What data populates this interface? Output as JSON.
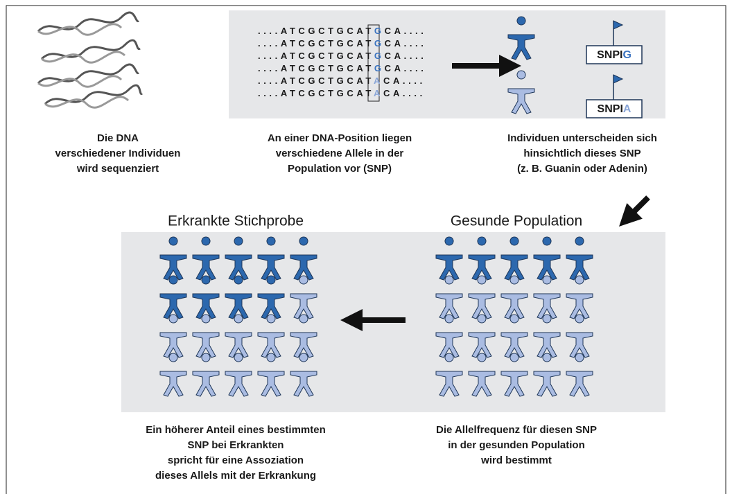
{
  "sequences": [
    {
      "prefix": "....ATCGCTGCAT",
      "allele": "G",
      "suffix": "CA...."
    },
    {
      "prefix": "....ATCGCTGCAT",
      "allele": "G",
      "suffix": "CA...."
    },
    {
      "prefix": "....ATCGCTGCAT",
      "allele": "G",
      "suffix": "CA...."
    },
    {
      "prefix": "....ATCGCTGCAT",
      "allele": "G",
      "suffix": "CA...."
    },
    {
      "prefix": "....ATCGCTGCAT",
      "allele": "A",
      "suffix": "CA...."
    },
    {
      "prefix": "....ATCGCTGCAT",
      "allele": "A",
      "suffix": "CA...."
    }
  ],
  "individuals": [
    {
      "label": "SNPI",
      "allele": "G"
    },
    {
      "label": "SNPI",
      "allele": "A"
    }
  ],
  "captions": {
    "sequencing": [
      "Die DNA",
      "verschiedener Individuen",
      "wird sequenziert"
    ],
    "alleles": [
      "An einer DNA-Position liegen",
      "verschiedene Allele in der",
      "Population vor (SNP)"
    ],
    "individuals": [
      "Individuen unterscheiden sich",
      "hinsichtlich dieses SNP",
      "(z. B. Guanin oder Adenin)"
    ],
    "case_sample": [
      "Ein höherer Anteil eines bestimmten",
      "SNP bei Erkrankten",
      "spricht für eine Assoziation",
      "dieses Allels mit der Erkrankung"
    ],
    "healthy_population": [
      "Die Allelfrequenz für diesen SNP",
      "in der gesunden Population",
      "wird bestimmt"
    ]
  },
  "panels": {
    "case_sample": {
      "title": "Erkrankte Stichprobe"
    },
    "healthy_population": {
      "title": "Gesunde Population"
    }
  }
}
